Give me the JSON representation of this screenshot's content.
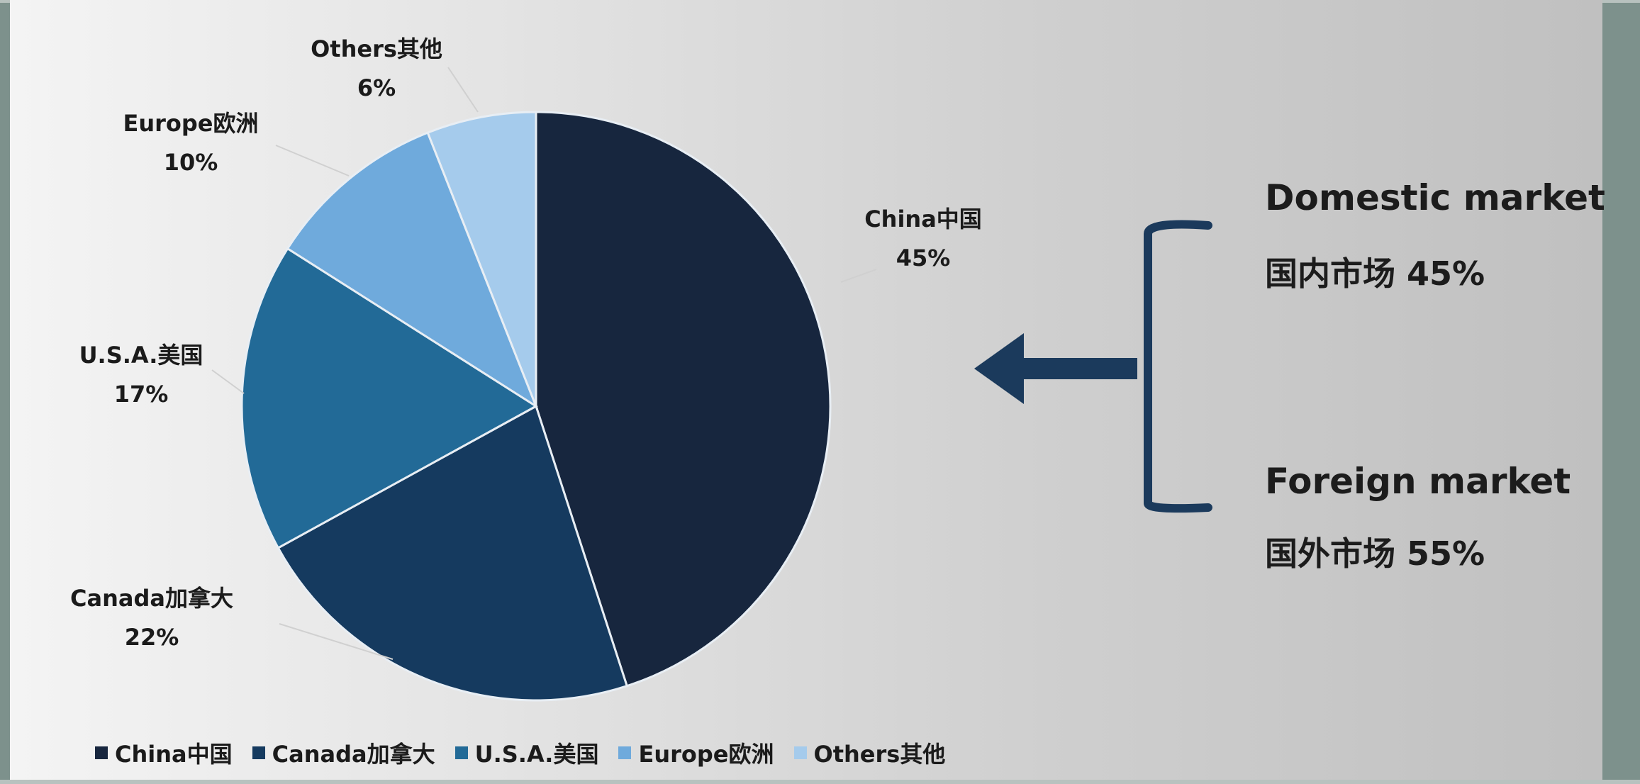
{
  "chart_data": {
    "type": "pie",
    "slices": [
      {
        "label": "China中国",
        "value": 45,
        "value_label": "45%",
        "color": "#17263e"
      },
      {
        "label": "Canada加拿大",
        "value": 22,
        "value_label": "22%",
        "color": "#153a5f"
      },
      {
        "label": "U.S.A.美国",
        "value": 17,
        "value_label": "17%",
        "color": "#226a97"
      },
      {
        "label": "Europe欧洲",
        "value": 10,
        "value_label": "10%",
        "color": "#6faadc"
      },
      {
        "label": "Others其他",
        "value": 6,
        "value_label": "6%",
        "color": "#a5cbec"
      }
    ],
    "legend_placement": "bottom",
    "start": "12 o'clock, clockwise"
  },
  "side_panel": {
    "domestic_title": "Domestic market",
    "domestic_value": "国内市场 45%",
    "foreign_title": "Foreign market",
    "foreign_value": "国外市场 55%"
  },
  "colors": {
    "frame": "#7d918c",
    "arrow": "#1b3a5c"
  },
  "icons": {
    "arrow": "left-arrow-icon",
    "bracket": "bracket-icon"
  }
}
